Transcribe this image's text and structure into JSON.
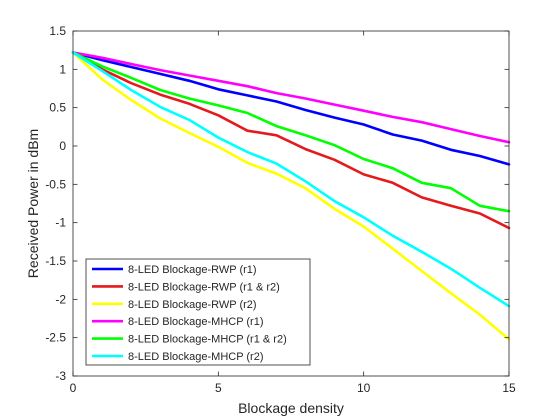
{
  "chart_data": {
    "type": "line",
    "title": "",
    "xlabel": "Blockage density",
    "ylabel": "Received Power in dBm",
    "xlim": [
      0,
      15
    ],
    "ylim": [
      -3,
      1.5
    ],
    "xticks": [
      0,
      5,
      10,
      15
    ],
    "yticks": [
      -3,
      -2.5,
      -2,
      -1.5,
      -1,
      -0.5,
      0,
      0.5,
      1,
      1.5
    ],
    "xtick_labels": [
      "0",
      "5",
      "10",
      "15"
    ],
    "ytick_labels": [
      "-3",
      "-2.5",
      "-2",
      "-1.5",
      "-1",
      "-0.5",
      "0",
      "0.5",
      "1",
      "1.5"
    ],
    "grid": false,
    "legend_position": "bottom-left",
    "x": [
      0,
      1,
      2,
      3,
      4,
      5,
      6,
      7,
      8,
      9,
      10,
      11,
      12,
      13,
      14,
      15
    ],
    "series": [
      {
        "name": "8-LED Blockage-RWP (r1)",
        "color": "#0000ff",
        "values": [
          1.22,
          1.12,
          1.03,
          0.94,
          0.85,
          0.74,
          0.66,
          0.58,
          0.47,
          0.37,
          0.28,
          0.15,
          0.07,
          -0.05,
          -0.13,
          -0.24
        ]
      },
      {
        "name": "8-LED Blockage-RWP (r1 & r2)",
        "color": "#e41a1c",
        "values": [
          1.22,
          1.0,
          0.82,
          0.67,
          0.55,
          0.4,
          0.2,
          0.14,
          -0.04,
          -0.18,
          -0.37,
          -0.48,
          -0.67,
          -0.78,
          -0.88,
          -1.07
        ]
      },
      {
        "name": "8-LED Blockage-RWP (r2)",
        "color": "#ffff00",
        "values": [
          1.22,
          0.87,
          0.6,
          0.36,
          0.17,
          -0.01,
          -0.22,
          -0.36,
          -0.55,
          -0.82,
          -1.05,
          -1.34,
          -1.63,
          -1.92,
          -2.2,
          -2.52
        ]
      },
      {
        "name": "8-LED Blockage-MHCP (r1)",
        "color": "#ff00ff",
        "values": [
          1.22,
          1.15,
          1.07,
          0.99,
          0.92,
          0.85,
          0.78,
          0.69,
          0.62,
          0.54,
          0.46,
          0.38,
          0.31,
          0.22,
          0.13,
          0.05
        ]
      },
      {
        "name": "8-LED Blockage-MHCP (r1 & r2)",
        "color": "#00ff00",
        "values": [
          1.22,
          1.04,
          0.89,
          0.73,
          0.62,
          0.53,
          0.43,
          0.26,
          0.14,
          0.01,
          -0.17,
          -0.29,
          -0.48,
          -0.55,
          -0.78,
          -0.85
        ]
      },
      {
        "name": "8-LED Blockage-MHCP (r2)",
        "color": "#00ffff",
        "values": [
          1.22,
          0.98,
          0.73,
          0.51,
          0.34,
          0.11,
          -0.08,
          -0.23,
          -0.46,
          -0.72,
          -0.93,
          -1.17,
          -1.38,
          -1.6,
          -1.85,
          -2.09
        ]
      }
    ]
  }
}
